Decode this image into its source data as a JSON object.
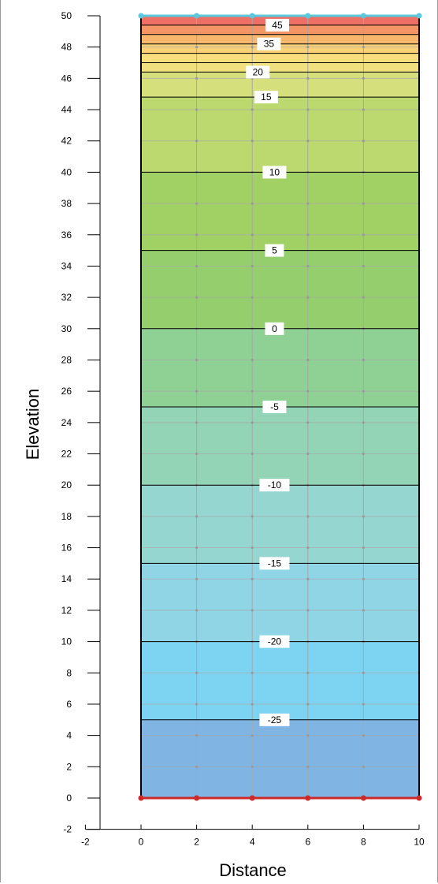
{
  "chart_data": {
    "type": "heatmap",
    "title": "",
    "xlabel": "Distance",
    "ylabel": "Elevation",
    "xlim": [
      -2,
      10
    ],
    "ylim": [
      -2,
      50
    ],
    "x_ticks": [
      -2,
      0,
      2,
      4,
      6,
      8,
      10
    ],
    "y_ticks": [
      -2,
      0,
      2,
      4,
      6,
      8,
      10,
      12,
      14,
      16,
      18,
      20,
      22,
      24,
      26,
      28,
      30,
      32,
      34,
      36,
      38,
      40,
      42,
      44,
      46,
      48,
      50
    ],
    "domain": {
      "x": [
        0,
        10
      ],
      "y": [
        0,
        50
      ]
    },
    "grid": true,
    "grid_x": [
      2,
      4,
      6,
      8
    ],
    "grid_y": [
      2,
      4,
      6,
      8,
      10,
      12,
      14,
      16,
      18,
      20,
      22,
      24,
      26,
      28,
      30,
      32,
      34,
      36,
      38,
      40,
      42,
      44,
      46,
      48
    ],
    "color_bands": [
      {
        "from": 0,
        "to": 5,
        "color": "#7fb4e3"
      },
      {
        "from": 5,
        "to": 10,
        "color": "#7dd3f2"
      },
      {
        "from": 10,
        "to": 15,
        "color": "#8fd5e6"
      },
      {
        "from": 15,
        "to": 20,
        "color": "#96d6d1"
      },
      {
        "from": 20,
        "to": 25,
        "color": "#93d3b6"
      },
      {
        "from": 25,
        "to": 30,
        "color": "#8fd094"
      },
      {
        "from": 30,
        "to": 35,
        "color": "#95cf6d"
      },
      {
        "from": 35,
        "to": 40,
        "color": "#a1d164"
      },
      {
        "from": 40,
        "to": 44.8,
        "color": "#bcd96f"
      },
      {
        "from": 44.8,
        "to": 46.4,
        "color": "#d5e07d"
      },
      {
        "from": 46.4,
        "to": 47.0,
        "color": "#f0e17e"
      },
      {
        "from": 47.0,
        "to": 47.6,
        "color": "#f8de7c"
      },
      {
        "from": 47.6,
        "to": 48.2,
        "color": "#fbd177"
      },
      {
        "from": 48.2,
        "to": 48.8,
        "color": "#f8b56c"
      },
      {
        "from": 48.8,
        "to": 49.4,
        "color": "#f39565"
      },
      {
        "from": 49.4,
        "to": 50,
        "color": "#ee6f66"
      }
    ],
    "contours": [
      {
        "y": 5,
        "label": "-25",
        "label_x": 4.8
      },
      {
        "y": 10,
        "label": "-20",
        "label_x": 4.8
      },
      {
        "y": 15,
        "label": "-15",
        "label_x": 4.8
      },
      {
        "y": 20,
        "label": "-10",
        "label_x": 4.8
      },
      {
        "y": 25,
        "label": "-5",
        "label_x": 4.8
      },
      {
        "y": 30,
        "label": "0",
        "label_x": 4.8
      },
      {
        "y": 35,
        "label": "5",
        "label_x": 4.8
      },
      {
        "y": 40,
        "label": "10",
        "label_x": 4.8
      },
      {
        "y": 44.8,
        "label": "15",
        "label_x": 4.5
      },
      {
        "y": 46.4,
        "label": "20",
        "label_x": 4.2
      },
      {
        "y": 47.0,
        "label": ""
      },
      {
        "y": 47.6,
        "label": ""
      },
      {
        "y": 48.2,
        "label": "35",
        "label_x": 4.6
      },
      {
        "y": 48.8,
        "label": ""
      },
      {
        "y": 49.4,
        "label": "45",
        "label_x": 4.9
      }
    ],
    "top_boundary": {
      "y": 50,
      "x_nodes": [
        0,
        2,
        4,
        6,
        8,
        10
      ],
      "color": "#5bc8dc"
    },
    "bottom_boundary": {
      "y": 0,
      "x_nodes": [
        0,
        2,
        4,
        6,
        8,
        10
      ],
      "color": "#cc2a2a"
    },
    "interior_nodes": {
      "x": [
        2,
        4,
        6,
        8
      ],
      "y": [
        2,
        4,
        6,
        8,
        10,
        12,
        14,
        16,
        18,
        20,
        22,
        24,
        26,
        28,
        30,
        32,
        34,
        36,
        38,
        40,
        42,
        44,
        46,
        48
      ]
    }
  }
}
